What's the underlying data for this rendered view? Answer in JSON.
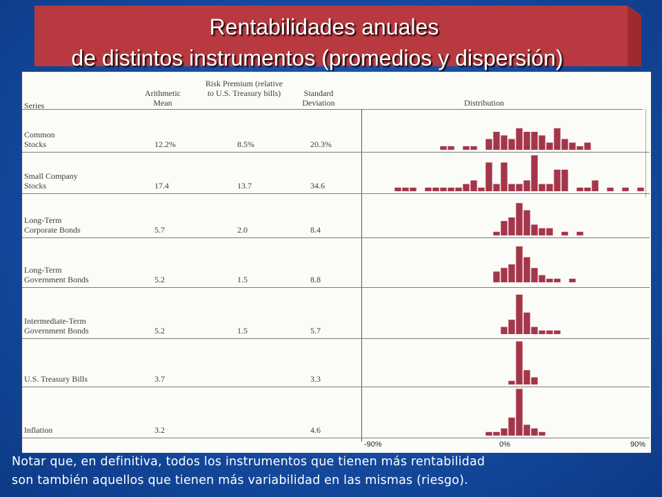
{
  "title": {
    "line1": "Rentabilidades  anuales",
    "line2": "de distintos instrumentos (promedios y dispersión)"
  },
  "table": {
    "headers": {
      "series": "Series",
      "mean": "Arithmetic Mean",
      "premium": "Risk Premium (relative to U.S. Treasury bills)",
      "std": "Standard Deviation",
      "distribution": "Distribution"
    },
    "rows": [
      {
        "name": "Common Stocks",
        "mean": "12.2%",
        "premium": "8.5%",
        "std": "20.3%"
      },
      {
        "name": "Small Company Stocks",
        "mean": "17.4",
        "premium": "13.7",
        "std": "34.6"
      },
      {
        "name": "Long-Term Corporate Bonds",
        "mean": "5.7",
        "premium": "2.0",
        "std": "8.4"
      },
      {
        "name": "Long-Term Government Bonds",
        "mean": "5.2",
        "premium": "1.5",
        "std": "8.8"
      },
      {
        "name": "Intermediate-Term Government Bonds",
        "mean": "5.2",
        "premium": "1.5",
        "std": "5.7"
      },
      {
        "name": "U.S. Treasury Bills",
        "mean": "3.7",
        "premium": "",
        "std": "3.3"
      },
      {
        "name": "Inflation",
        "mean": "3.2",
        "premium": "",
        "std": "4.6"
      }
    ],
    "axis": {
      "min_label": "-90%",
      "zero_label": "0%",
      "max_label": "90%"
    }
  },
  "chart_data": {
    "type": "bar",
    "title": "Distribution",
    "x_range": [
      -90,
      90
    ],
    "bin_width": 5,
    "note": "histogram heights are approximate relative frequencies read from the figure",
    "series": [
      {
        "name": "Common Stocks",
        "bins": [
          {
            "x": -45,
            "h": 1
          },
          {
            "x": -40,
            "h": 1
          },
          {
            "x": -30,
            "h": 1
          },
          {
            "x": -25,
            "h": 1
          },
          {
            "x": -15,
            "h": 3
          },
          {
            "x": -10,
            "h": 5
          },
          {
            "x": -5,
            "h": 4
          },
          {
            "x": 0,
            "h": 3
          },
          {
            "x": 5,
            "h": 6
          },
          {
            "x": 10,
            "h": 5
          },
          {
            "x": 15,
            "h": 5
          },
          {
            "x": 20,
            "h": 4
          },
          {
            "x": 25,
            "h": 2
          },
          {
            "x": 30,
            "h": 6
          },
          {
            "x": 35,
            "h": 3
          },
          {
            "x": 40,
            "h": 2
          },
          {
            "x": 45,
            "h": 1
          },
          {
            "x": 50,
            "h": 2
          }
        ]
      },
      {
        "name": "Small Company Stocks",
        "bins": [
          {
            "x": -75,
            "h": 1
          },
          {
            "x": -70,
            "h": 1
          },
          {
            "x": -65,
            "h": 1
          },
          {
            "x": -55,
            "h": 1
          },
          {
            "x": -50,
            "h": 1
          },
          {
            "x": -45,
            "h": 1
          },
          {
            "x": -40,
            "h": 1
          },
          {
            "x": -35,
            "h": 1
          },
          {
            "x": -30,
            "h": 2
          },
          {
            "x": -25,
            "h": 3
          },
          {
            "x": -20,
            "h": 1
          },
          {
            "x": -15,
            "h": 8
          },
          {
            "x": -10,
            "h": 2
          },
          {
            "x": -5,
            "h": 8
          },
          {
            "x": 0,
            "h": 2
          },
          {
            "x": 5,
            "h": 2
          },
          {
            "x": 10,
            "h": 3
          },
          {
            "x": 15,
            "h": 10
          },
          {
            "x": 20,
            "h": 2
          },
          {
            "x": 25,
            "h": 2
          },
          {
            "x": 30,
            "h": 6
          },
          {
            "x": 35,
            "h": 6
          },
          {
            "x": 45,
            "h": 1
          },
          {
            "x": 50,
            "h": 1
          },
          {
            "x": 55,
            "h": 3
          },
          {
            "x": 65,
            "h": 1
          },
          {
            "x": 75,
            "h": 1
          },
          {
            "x": 85,
            "h": 1
          }
        ]
      },
      {
        "name": "Long-Term Corporate Bonds",
        "bins": [
          {
            "x": -10,
            "h": 1
          },
          {
            "x": -5,
            "h": 4
          },
          {
            "x": 0,
            "h": 5
          },
          {
            "x": 5,
            "h": 9
          },
          {
            "x": 10,
            "h": 7
          },
          {
            "x": 15,
            "h": 3
          },
          {
            "x": 20,
            "h": 2
          },
          {
            "x": 25,
            "h": 2
          },
          {
            "x": 35,
            "h": 1
          },
          {
            "x": 45,
            "h": 1
          }
        ]
      },
      {
        "name": "Long-Term Government Bonds",
        "bins": [
          {
            "x": -10,
            "h": 3
          },
          {
            "x": -5,
            "h": 4
          },
          {
            "x": 0,
            "h": 5
          },
          {
            "x": 5,
            "h": 10
          },
          {
            "x": 10,
            "h": 7
          },
          {
            "x": 15,
            "h": 4
          },
          {
            "x": 20,
            "h": 2
          },
          {
            "x": 25,
            "h": 1
          },
          {
            "x": 30,
            "h": 1
          },
          {
            "x": 40,
            "h": 1
          }
        ]
      },
      {
        "name": "Intermediate-Term Government Bonds",
        "bins": [
          {
            "x": -5,
            "h": 2
          },
          {
            "x": 0,
            "h": 4
          },
          {
            "x": 5,
            "h": 11
          },
          {
            "x": 10,
            "h": 6
          },
          {
            "x": 15,
            "h": 2
          },
          {
            "x": 20,
            "h": 1
          },
          {
            "x": 25,
            "h": 1
          },
          {
            "x": 30,
            "h": 1
          }
        ]
      },
      {
        "name": "U.S. Treasury Bills",
        "bins": [
          {
            "x": 0,
            "h": 1
          },
          {
            "x": 5,
            "h": 12
          },
          {
            "x": 10,
            "h": 4
          },
          {
            "x": 15,
            "h": 2
          }
        ]
      },
      {
        "name": "Inflation",
        "bins": [
          {
            "x": -15,
            "h": 1
          },
          {
            "x": -10,
            "h": 1
          },
          {
            "x": -5,
            "h": 2
          },
          {
            "x": 0,
            "h": 5
          },
          {
            "x": 5,
            "h": 13
          },
          {
            "x": 10,
            "h": 3
          },
          {
            "x": 15,
            "h": 2
          },
          {
            "x": 20,
            "h": 1
          }
        ]
      }
    ]
  },
  "footer": {
    "line1": "Notar que, en definitiva, todos los instrumentos que tienen más rentabilidad",
    "line2": "son también aquellos que tienen más variabilidad en las mismas (riesgo)."
  },
  "colors": {
    "background": "#174fa6",
    "banner": "#b83a40",
    "bar": "#a5364a"
  }
}
